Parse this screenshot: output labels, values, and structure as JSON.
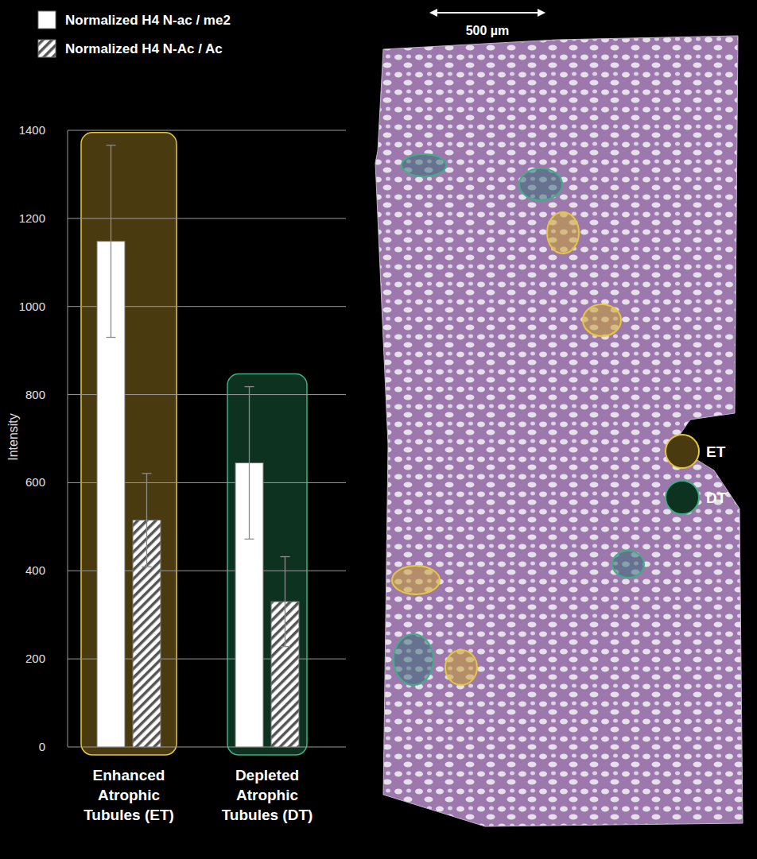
{
  "chart_data": {
    "type": "bar",
    "y_label": "Intensity",
    "categories": [
      "Enhanced Atrophic Tubules (ET)",
      "Depleted Atrophic Tubules (DT)"
    ],
    "colors": [
      "#4a3a10",
      "#0d3320"
    ],
    "series": [
      {
        "name": "Normalized H4 N-ac / me2",
        "color": "#ffffff",
        "values": [
          1148,
          645
        ],
        "errors": [
          218,
          173
        ]
      },
      {
        "name": "Normalized H4 N-Ac / Ac",
        "color": "#ffffff",
        "values": [
          515,
          330
        ],
        "errors": [
          106,
          102
        ]
      }
    ],
    "ylim": [
      0,
      1400
    ],
    "yticks": [
      0,
      200,
      400,
      600,
      800,
      1000,
      1200,
      1400
    ],
    "grid": true,
    "legend": "top-left"
  },
  "image": {
    "scale_label": "500 µm",
    "legend": [
      {
        "label": "ET",
        "color": "#e6c83c"
      },
      {
        "label": "DT",
        "color": "#3fae86"
      }
    ]
  }
}
